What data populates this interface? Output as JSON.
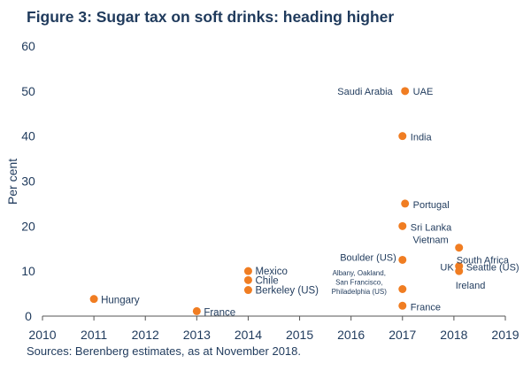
{
  "header": {
    "title": "Figure 3: Sugar tax on soft drinks: heading higher"
  },
  "footer": {
    "source": "Sources: Berenberg estimates, as at November 2018."
  },
  "colors": {
    "point": "#f07d22",
    "text": "#1f3a5c",
    "axis": "#555555"
  },
  "chart_data": {
    "type": "scatter",
    "ylabel": "Per cent",
    "xlabel": "",
    "xlim": [
      2010,
      2019
    ],
    "ylim": [
      0,
      60
    ],
    "x_ticks": [
      "2010",
      "2011",
      "2012",
      "2013",
      "2014",
      "2015",
      "2016",
      "2017",
      "2018",
      "2019"
    ],
    "y_ticks": [
      "0",
      "10",
      "20",
      "30",
      "40",
      "50",
      "60"
    ],
    "grid": false,
    "points": [
      {
        "label": "Hungary",
        "x": 2011.0,
        "y": 3.8
      },
      {
        "label": "France",
        "x": 2013.0,
        "y": 1.1
      },
      {
        "label": "Mexico",
        "x": 2014.0,
        "y": 10.0
      },
      {
        "label": "Chile",
        "x": 2014.0,
        "y": 8.0
      },
      {
        "label": "Berkeley (US)",
        "x": 2014.0,
        "y": 5.8
      },
      {
        "label": "Saudi Arabia",
        "x": 2017.05,
        "y": 50.0
      },
      {
        "label": "UAE",
        "x": 2017.05,
        "y": 50.0
      },
      {
        "label": "India",
        "x": 2017.0,
        "y": 40.0
      },
      {
        "label": "Portugal",
        "x": 2017.05,
        "y": 25.0
      },
      {
        "label": "Sri Lanka",
        "x": 2017.0,
        "y": 20.0
      },
      {
        "label": "Vietnam",
        "x": 2018.1,
        "y": 15.2
      },
      {
        "label": "South Africa",
        "x": 2018.1,
        "y": 15.2
      },
      {
        "label": "Boulder (US)",
        "x": 2017.0,
        "y": 12.5
      },
      {
        "label": "UK",
        "x": 2018.1,
        "y": 11.1
      },
      {
        "label": "Seattle (US)",
        "x": 2018.1,
        "y": 11.1
      },
      {
        "label": "Ireland",
        "x": 2018.1,
        "y": 10.0
      },
      {
        "label": "Albany, Oakland, San Francisco, Philadelphia (US)",
        "x": 2017.0,
        "y": 6.0
      },
      {
        "label": "France",
        "x": 2017.0,
        "y": 2.3
      }
    ]
  }
}
